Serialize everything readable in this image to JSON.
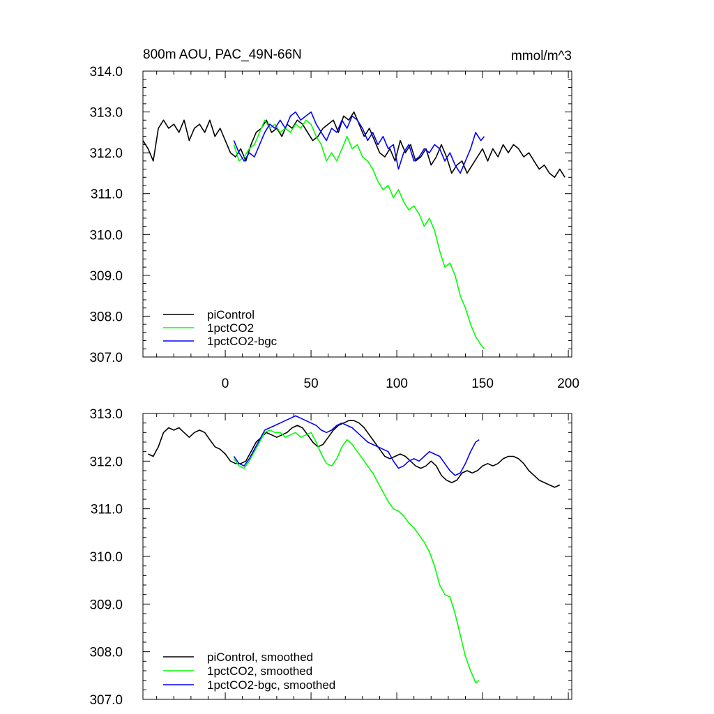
{
  "chart_data": [
    {
      "type": "line",
      "title": "800m AOU, PAC_49N-66N",
      "units": "mmol/m^3",
      "xlim": [
        -48,
        202
      ],
      "ylim": [
        307.0,
        314.0
      ],
      "x_ticks": [
        0,
        50,
        100,
        150,
        200
      ],
      "x_tick_labels": [
        "0",
        "50",
        "100",
        "150",
        "200"
      ],
      "y_ticks": [
        307,
        308,
        309,
        310,
        311,
        312,
        313,
        314
      ],
      "y_tick_labels": [
        "307.0",
        "308.0",
        "309.0",
        "310.0",
        "311.0",
        "312.0",
        "313.0",
        "314.0"
      ],
      "legend": [
        "piControl",
        "1pctCO2",
        "1pctCO2-bgc"
      ],
      "series": [
        {
          "name": "piControl",
          "color": "#000000",
          "x": [
            -48,
            -45,
            -42,
            -39,
            -36,
            -33,
            -30,
            -27,
            -24,
            -21,
            -18,
            -15,
            -12,
            -9,
            -6,
            -3,
            0,
            3,
            6,
            9,
            12,
            15,
            18,
            21,
            24,
            27,
            30,
            33,
            36,
            39,
            42,
            45,
            48,
            51,
            54,
            57,
            60,
            63,
            66,
            69,
            72,
            75,
            78,
            81,
            84,
            87,
            90,
            93,
            96,
            99,
            102,
            105,
            108,
            111,
            114,
            117,
            120,
            123,
            126,
            129,
            132,
            135,
            138,
            141,
            144,
            147,
            150,
            153,
            156,
            159,
            162,
            165,
            168,
            171,
            174,
            177,
            180,
            183,
            186,
            189,
            192,
            195,
            198
          ],
          "values": [
            312.3,
            312.1,
            311.8,
            312.6,
            312.8,
            312.6,
            312.7,
            312.5,
            312.8,
            312.3,
            312.6,
            312.7,
            312.5,
            312.8,
            312.4,
            312.6,
            312.3,
            312.0,
            311.9,
            312.1,
            311.8,
            312.2,
            312.5,
            312.6,
            312.8,
            312.5,
            312.6,
            312.4,
            312.7,
            312.6,
            312.8,
            312.7,
            312.5,
            312.3,
            312.4,
            312.6,
            312.7,
            312.8,
            312.5,
            312.9,
            312.8,
            313.0,
            312.7,
            312.4,
            312.6,
            312.3,
            312.0,
            311.9,
            312.1,
            311.8,
            312.3,
            312.0,
            312.2,
            311.8,
            311.9,
            312.1,
            311.7,
            311.9,
            312.2,
            311.9,
            311.5,
            311.7,
            311.8,
            311.5,
            311.7,
            311.9,
            312.1,
            311.8,
            312.1,
            311.9,
            312.2,
            312.0,
            312.2,
            312.1,
            311.9,
            312.0,
            311.8,
            311.6,
            311.7,
            311.5,
            311.4,
            311.6,
            311.4
          ]
        },
        {
          "name": "1pctCO2",
          "color": "#00ff00",
          "x": [
            5,
            8,
            11,
            14,
            17,
            20,
            23,
            26,
            29,
            32,
            35,
            38,
            41,
            44,
            47,
            50,
            53,
            56,
            59,
            62,
            65,
            68,
            71,
            74,
            77,
            80,
            83,
            86,
            89,
            92,
            95,
            98,
            101,
            104,
            107,
            110,
            113,
            116,
            119,
            122,
            125,
            128,
            131,
            134,
            137,
            140,
            143,
            146,
            149,
            151
          ],
          "values": [
            312.2,
            311.8,
            311.9,
            312.1,
            312.2,
            312.5,
            312.8,
            312.6,
            312.7,
            312.5,
            312.6,
            312.5,
            312.7,
            312.6,
            312.8,
            312.7,
            312.4,
            312.2,
            311.8,
            312.0,
            311.8,
            312.1,
            312.4,
            312.1,
            312.2,
            311.9,
            311.8,
            311.6,
            311.3,
            311.1,
            311.2,
            310.9,
            311.1,
            310.8,
            310.6,
            310.7,
            310.5,
            310.2,
            310.4,
            310.1,
            309.6,
            309.2,
            309.3,
            309.0,
            308.5,
            308.2,
            307.8,
            307.5,
            307.3,
            307.2
          ]
        },
        {
          "name": "1pctCO2-bgc",
          "color": "#0000ff",
          "x": [
            5,
            8,
            11,
            14,
            17,
            20,
            23,
            26,
            29,
            32,
            35,
            38,
            41,
            44,
            47,
            50,
            53,
            56,
            59,
            62,
            65,
            68,
            71,
            74,
            77,
            80,
            83,
            86,
            89,
            92,
            95,
            98,
            101,
            104,
            107,
            110,
            113,
            116,
            119,
            122,
            125,
            128,
            131,
            134,
            137,
            140,
            143,
            146,
            149,
            151
          ],
          "values": [
            312.3,
            312.0,
            311.8,
            312.0,
            311.9,
            312.2,
            312.5,
            312.7,
            312.6,
            312.8,
            312.6,
            312.9,
            313.0,
            312.8,
            312.9,
            313.0,
            312.7,
            312.5,
            312.3,
            312.6,
            312.5,
            312.8,
            312.6,
            312.9,
            312.8,
            312.6,
            312.3,
            312.5,
            312.2,
            312.4,
            312.1,
            312.2,
            311.6,
            312.0,
            312.2,
            311.8,
            311.9,
            312.1,
            312.0,
            312.2,
            312.1,
            311.8,
            312.0,
            311.7,
            311.5,
            311.8,
            312.1,
            312.5,
            312.3,
            312.4
          ]
        }
      ]
    },
    {
      "type": "line",
      "title": "",
      "xlim": [
        -48,
        202
      ],
      "ylim": [
        307.0,
        313.0
      ],
      "x_ticks": [
        0,
        50,
        100,
        150,
        200
      ],
      "y_ticks": [
        307,
        308,
        309,
        310,
        311,
        312,
        313
      ],
      "y_tick_labels": [
        "307.0",
        "308.0",
        "309.0",
        "310.0",
        "311.0",
        "312.0",
        "313.0"
      ],
      "legend": [
        "piControl, smoothed",
        "1pctCO2, smoothed",
        "1pctCO2-bgc, smoothed"
      ],
      "series": [
        {
          "name": "piControl, smoothed",
          "color": "#000000",
          "x": [
            -45,
            -42,
            -39,
            -36,
            -33,
            -30,
            -27,
            -24,
            -21,
            -18,
            -15,
            -12,
            -9,
            -6,
            -3,
            0,
            3,
            6,
            9,
            12,
            15,
            18,
            21,
            24,
            27,
            30,
            33,
            36,
            39,
            42,
            45,
            48,
            51,
            54,
            57,
            60,
            63,
            66,
            69,
            72,
            75,
            78,
            81,
            84,
            87,
            90,
            93,
            96,
            99,
            102,
            105,
            108,
            111,
            114,
            117,
            120,
            123,
            126,
            129,
            132,
            135,
            138,
            141,
            144,
            147,
            150,
            153,
            156,
            159,
            162,
            165,
            168,
            171,
            174,
            177,
            180,
            183,
            186,
            189,
            192,
            195
          ],
          "values": [
            312.15,
            312.1,
            312.3,
            312.6,
            312.7,
            312.65,
            312.7,
            312.6,
            312.5,
            312.6,
            312.65,
            312.6,
            312.45,
            312.3,
            312.25,
            312.15,
            312.0,
            311.95,
            311.95,
            312.0,
            312.2,
            312.4,
            312.5,
            312.6,
            312.55,
            312.5,
            312.55,
            312.6,
            312.7,
            312.75,
            312.7,
            312.55,
            312.4,
            312.3,
            312.35,
            312.5,
            312.65,
            312.75,
            312.8,
            312.85,
            312.85,
            312.8,
            312.7,
            312.55,
            312.4,
            312.25,
            312.1,
            312.05,
            312.1,
            312.15,
            312.1,
            312.0,
            311.9,
            311.85,
            311.9,
            312.0,
            311.9,
            311.7,
            311.6,
            311.55,
            311.6,
            311.75,
            311.8,
            311.75,
            311.8,
            311.9,
            311.95,
            311.9,
            311.95,
            312.05,
            312.1,
            312.1,
            312.05,
            311.95,
            311.8,
            311.7,
            311.6,
            311.55,
            311.5,
            311.45,
            311.5
          ]
        },
        {
          "name": "1pctCO2, smoothed",
          "color": "#00ff00",
          "x": [
            5,
            8,
            11,
            14,
            17,
            20,
            23,
            26,
            29,
            32,
            35,
            38,
            41,
            44,
            47,
            50,
            53,
            56,
            59,
            62,
            65,
            68,
            71,
            74,
            77,
            80,
            83,
            86,
            89,
            92,
            95,
            98,
            101,
            104,
            107,
            110,
            113,
            116,
            119,
            122,
            125,
            128,
            131,
            134,
            137,
            140,
            143,
            146,
            148
          ],
          "values": [
            312.05,
            311.9,
            311.85,
            312.0,
            312.2,
            312.4,
            312.6,
            312.65,
            312.6,
            312.6,
            312.5,
            312.55,
            312.6,
            312.5,
            312.55,
            312.6,
            312.4,
            312.15,
            311.95,
            311.9,
            312.05,
            312.3,
            312.45,
            312.35,
            312.2,
            312.05,
            311.9,
            311.75,
            311.55,
            311.35,
            311.15,
            311.0,
            310.95,
            310.85,
            310.7,
            310.6,
            310.45,
            310.3,
            310.1,
            309.8,
            309.4,
            309.2,
            309.15,
            308.8,
            308.35,
            307.9,
            307.6,
            307.35,
            307.4
          ]
        },
        {
          "name": "1pctCO2-bgc, smoothed",
          "color": "#0000ff",
          "x": [
            5,
            8,
            11,
            14,
            17,
            20,
            23,
            26,
            29,
            32,
            35,
            38,
            41,
            44,
            47,
            50,
            53,
            56,
            59,
            62,
            65,
            68,
            71,
            74,
            77,
            80,
            83,
            86,
            89,
            92,
            95,
            98,
            101,
            104,
            107,
            110,
            113,
            116,
            119,
            122,
            125,
            128,
            131,
            134,
            137,
            140,
            143,
            146,
            148
          ],
          "values": [
            312.1,
            311.95,
            311.9,
            312.05,
            312.25,
            312.45,
            312.65,
            312.7,
            312.75,
            312.8,
            312.85,
            312.9,
            312.95,
            312.9,
            312.85,
            312.8,
            312.75,
            312.65,
            312.6,
            312.65,
            312.75,
            312.8,
            312.75,
            312.7,
            312.6,
            312.5,
            312.4,
            312.35,
            312.3,
            312.25,
            312.2,
            312.0,
            311.85,
            311.9,
            312.0,
            312.05,
            312.0,
            312.1,
            312.2,
            312.15,
            312.1,
            311.95,
            311.8,
            311.7,
            311.75,
            311.95,
            312.2,
            312.4,
            312.45
          ]
        }
      ]
    }
  ]
}
